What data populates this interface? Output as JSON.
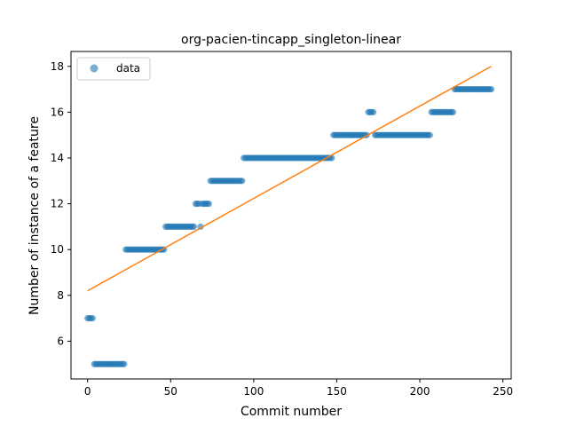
{
  "chart_data": {
    "type": "scatter",
    "title": "org-pacien-tincapp_singleton-linear",
    "xlabel": "Commit number",
    "ylabel": "Number of instance of a feature",
    "xlim": [
      -10,
      255
    ],
    "ylim": [
      4.35,
      18.65
    ],
    "xticks": [
      0,
      50,
      100,
      150,
      200,
      250
    ],
    "yticks": [
      6,
      8,
      10,
      12,
      14,
      16,
      18
    ],
    "grid": false,
    "legend": {
      "position": "top-left",
      "entries": [
        "data"
      ]
    },
    "colors": {
      "data": "#1f77b4",
      "fit": "#ff7f0e"
    },
    "series": [
      {
        "name": "data",
        "kind": "scatter",
        "segments": [
          {
            "x_start": 0,
            "x_end": 3,
            "y": 7
          },
          {
            "x_start": 4,
            "x_end": 22,
            "y": 5
          },
          {
            "x_start": 23,
            "x_end": 46,
            "y": 10
          },
          {
            "x_start": 47,
            "x_end": 64,
            "y": 11
          },
          {
            "x_start": 65,
            "x_end": 67,
            "y": 12
          },
          {
            "x_start": 68,
            "x_end": 68,
            "y": 11
          },
          {
            "x_start": 69,
            "x_end": 73,
            "y": 12
          },
          {
            "x_start": 74,
            "x_end": 93,
            "y": 13
          },
          {
            "x_start": 94,
            "x_end": 147,
            "y": 14
          },
          {
            "x_start": 148,
            "x_end": 168,
            "y": 15
          },
          {
            "x_start": 169,
            "x_end": 172,
            "y": 16
          },
          {
            "x_start": 173,
            "x_end": 206,
            "y": 15
          },
          {
            "x_start": 207,
            "x_end": 220,
            "y": 16
          },
          {
            "x_start": 221,
            "x_end": 243,
            "y": 17
          }
        ]
      },
      {
        "kind": "line",
        "x": [
          0,
          243
        ],
        "y": [
          8.2,
          18.0
        ]
      }
    ]
  }
}
